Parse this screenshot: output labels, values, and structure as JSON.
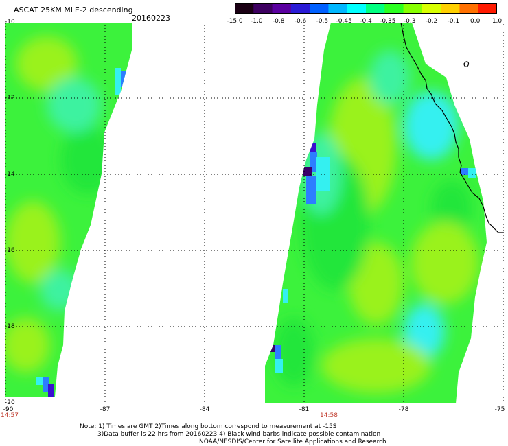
{
  "header": {
    "title": "ASCAT 25KM MLE-2 descending",
    "date": "20160223"
  },
  "colorbar": {
    "labels": [
      "-15.0",
      "-1.0",
      "-0.8",
      "-0.6",
      "-0.5",
      "-0.45",
      "-0.4",
      "-0.35",
      "-0.3",
      "-0.2",
      "-0.1",
      "0.0",
      "1.0"
    ],
    "colors": [
      "#1a0013",
      "#3d0060",
      "#5a00a0",
      "#2a1bd6",
      "#0060ff",
      "#00b7ff",
      "#00ffff",
      "#00ff80",
      "#2bff20",
      "#88ff00",
      "#d8ff00",
      "#ffd000",
      "#ff7000",
      "#ff1a00"
    ]
  },
  "axes": {
    "lat_ticks": [
      "-10",
      "-12",
      "-14",
      "-16",
      "-18",
      "-20"
    ],
    "lon_ticks": [
      "-90",
      "-87",
      "-84",
      "-81",
      "-78",
      "-75"
    ],
    "times": [
      "14:57",
      "14:58"
    ]
  },
  "notes": [
    "Note: 1) Times are GMT 2)Times along bottom correspond to measurement at -15S",
    "3)Data buffer is 22 hrs from 20160223 4) Black wind barbs indicate possible contamination",
    "NOAA/NESDIS/Center for Satellite Applications and Research"
  ],
  "palette": {
    "deep_green": "#22e63a",
    "green": "#3cf23c",
    "yellow_green": "#9af21e",
    "cyan_green": "#3cf2a0",
    "cyan": "#34f0f0",
    "blue": "#2d7dff",
    "dark_blue": "#3a10d0",
    "purple": "#3a006a",
    "coast": "#000000",
    "grid": "#000000"
  }
}
